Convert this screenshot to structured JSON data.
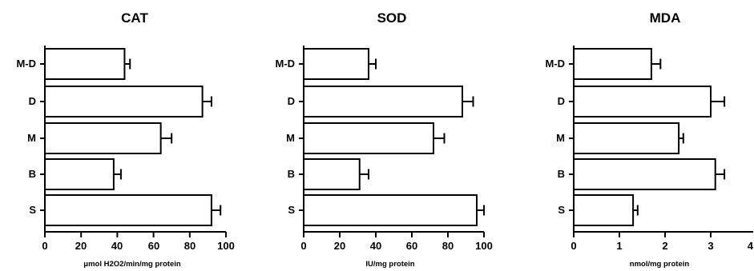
{
  "chart_data": [
    {
      "type": "bar",
      "orientation": "horizontal",
      "title": "CAT",
      "xlabel": "μmol H2O2/min/mg protein",
      "ylabel": "",
      "categories": [
        "M-D",
        "D",
        "M",
        "B",
        "S"
      ],
      "values": [
        44,
        87,
        64,
        38,
        92
      ],
      "errors": [
        3,
        5,
        6,
        4,
        5
      ],
      "xlim": [
        0,
        100
      ],
      "xticks": [
        "0",
        "20",
        "40",
        "60",
        "80",
        "100"
      ],
      "grid": false
    },
    {
      "type": "bar",
      "orientation": "horizontal",
      "title": "SOD",
      "xlabel": "IU/mg protein",
      "ylabel": "",
      "categories": [
        "M-D",
        "D",
        "M",
        "B",
        "S"
      ],
      "values": [
        36,
        88,
        72,
        31,
        96
      ],
      "errors": [
        4,
        6,
        6,
        5,
        4
      ],
      "xlim": [
        0,
        100
      ],
      "xticks": [
        "0",
        "20",
        "40",
        "60",
        "80",
        "100"
      ],
      "grid": false
    },
    {
      "type": "bar",
      "orientation": "horizontal",
      "title": "MDA",
      "xlabel": "nmol/mg protein",
      "ylabel": "",
      "categories": [
        "M-D",
        "D",
        "M",
        "B",
        "S"
      ],
      "values": [
        1.7,
        3.0,
        2.3,
        3.1,
        1.3
      ],
      "errors": [
        0.2,
        0.3,
        0.1,
        0.2,
        0.1
      ],
      "xlim": [
        0,
        4
      ],
      "xticks": [
        "0",
        "1",
        "2",
        "3",
        "4"
      ],
      "grid": false
    }
  ]
}
